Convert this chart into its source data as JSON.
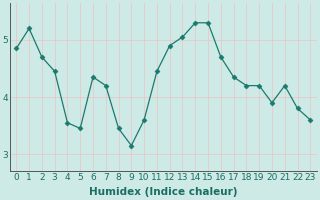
{
  "x": [
    0,
    1,
    2,
    3,
    4,
    5,
    6,
    7,
    8,
    9,
    10,
    11,
    12,
    13,
    14,
    15,
    16,
    17,
    18,
    19,
    20,
    21,
    22,
    23
  ],
  "y": [
    4.85,
    5.2,
    4.7,
    4.45,
    3.55,
    3.45,
    4.35,
    4.2,
    3.45,
    3.15,
    3.6,
    4.45,
    4.9,
    5.05,
    5.3,
    5.3,
    4.7,
    4.35,
    4.2,
    4.2,
    3.9,
    4.2,
    3.8,
    3.6
  ],
  "line_color": "#1a7a6e",
  "marker": "D",
  "marker_size": 2.5,
  "bg_color": "#ceeae7",
  "grid_color": "#e8c8c8",
  "xlabel": "Humidex (Indice chaleur)",
  "yticks": [
    3,
    4,
    5
  ],
  "ylim": [
    2.7,
    5.65
  ],
  "xlim": [
    -0.5,
    23.5
  ],
  "xlabel_fontsize": 7.5,
  "tick_fontsize": 6.5
}
